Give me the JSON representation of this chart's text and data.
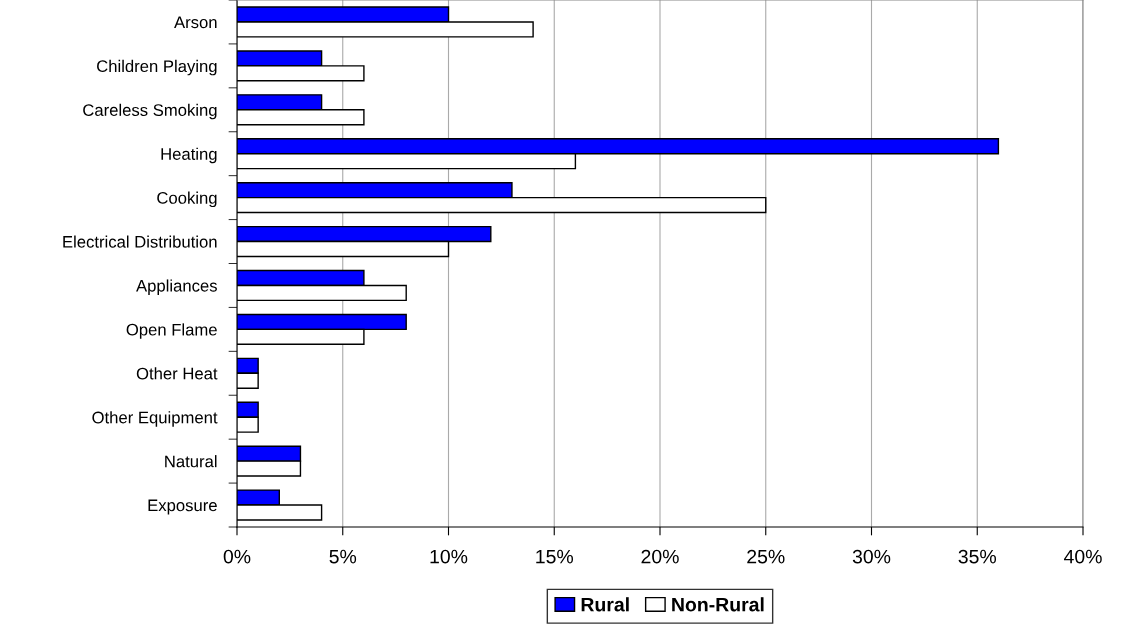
{
  "chart_data": {
    "type": "bar",
    "orientation": "horizontal",
    "categories": [
      "Arson",
      "Children Playing",
      "Careless Smoking",
      "Heating",
      "Cooking",
      "Electrical Distribution",
      "Appliances",
      "Open Flame",
      "Other Heat",
      "Other Equipment",
      "Natural",
      "Exposure"
    ],
    "series": [
      {
        "name": "Rural",
        "color": "#0000ff",
        "values": [
          10,
          4,
          4,
          36,
          13,
          12,
          6,
          8,
          1,
          1,
          3,
          2
        ]
      },
      {
        "name": "Non-Rural",
        "color": "#ffffff",
        "values": [
          14,
          6,
          6,
          16,
          25,
          10,
          8,
          6,
          1,
          1,
          3,
          4
        ]
      }
    ],
    "xlim": [
      0,
      40
    ],
    "xticks": [
      {
        "value": 0,
        "label": "0%"
      },
      {
        "value": 5,
        "label": "5%"
      },
      {
        "value": 10,
        "label": "10%"
      },
      {
        "value": 15,
        "label": "15%"
      },
      {
        "value": 20,
        "label": "20%"
      },
      {
        "value": 25,
        "label": "25%"
      },
      {
        "value": 30,
        "label": "30%"
      },
      {
        "value": 35,
        "label": "35%"
      },
      {
        "value": 40,
        "label": "40%"
      }
    ],
    "grid": "x",
    "legend": "bottom"
  }
}
